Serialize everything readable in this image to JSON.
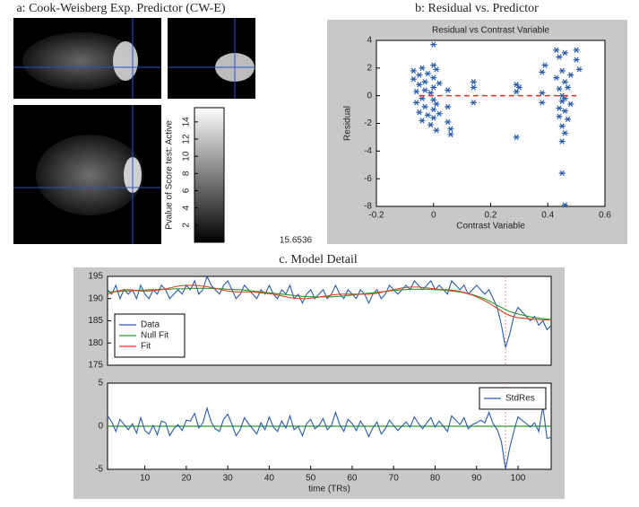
{
  "panel_a": {
    "title": "a: Cook-Weisberg Exp. Predictor (CW-E)",
    "colorbar": {
      "label": "Pvalue of Score test: Active",
      "ticks": [
        2,
        4,
        6,
        8,
        10,
        12,
        14
      ],
      "lim": [
        0,
        15.6536
      ]
    }
  },
  "chart_data": [
    {
      "type": "scatter",
      "panel_title": "b: Residual vs. Predictor",
      "title": "Residual vs Contrast Variable",
      "xlabel": "Contrast Variable",
      "ylabel": "Residual",
      "color": "#2a5caa",
      "xlim": [
        -0.2,
        0.6
      ],
      "xticks": [
        -0.2,
        0,
        0.2,
        0.4,
        0.6
      ],
      "ylim": [
        -8,
        4
      ],
      "yticks": [
        -8,
        -6,
        -4,
        -2,
        0,
        2,
        4
      ],
      "x": [
        -0.07,
        -0.07,
        -0.06,
        -0.06,
        -0.05,
        -0.05,
        -0.05,
        -0.04,
        -0.04,
        -0.04,
        -0.03,
        -0.03,
        -0.03,
        -0.02,
        -0.02,
        -0.01,
        -0.01,
        0,
        0,
        0,
        0,
        0,
        0,
        0,
        0.01,
        0.01,
        0.01,
        0.02,
        0.02,
        0.05,
        0.05,
        0.05,
        0.06,
        0.06,
        0.14,
        0.14,
        0.14,
        0.29,
        0.29,
        0.29,
        0.3,
        0.38,
        0.38,
        0.38,
        0.39,
        0.43,
        0.43,
        0.44,
        0.44,
        0.44,
        0.44,
        0.45,
        0.45,
        0.45,
        0.45,
        0.45,
        0.45,
        0.46,
        0.46,
        0.46,
        0.46,
        0.46,
        0.46,
        0.47,
        0.47,
        0.48,
        0.48,
        0.5,
        0.5,
        0.51
      ],
      "values": [
        1.8,
        1.2,
        0.3,
        -0.5,
        1.5,
        -1.2,
        0.8,
        2,
        -0.2,
        -1.8,
        1,
        0.4,
        -0.8,
        1.6,
        -1.4,
        0.2,
        -2.1,
        3.7,
        2.2,
        1.3,
        0.6,
        -0.3,
        -1,
        -1.6,
        1.9,
        -0.6,
        -2.5,
        0.9,
        -1.3,
        0.4,
        -0.8,
        -1.9,
        -2.4,
        -2.8,
        1,
        0.6,
        -0.5,
        0.8,
        0.3,
        -3,
        0.6,
        1.7,
        0.2,
        -0.5,
        2.2,
        3.3,
        1.3,
        2.8,
        0.5,
        -0.9,
        -1.5,
        1.8,
        0,
        -0.4,
        -2.2,
        -3.3,
        -5.6,
        3.1,
        1,
        -0.2,
        -1.1,
        -2.7,
        -7.9,
        0.6,
        -1.7,
        1.5,
        -0.6,
        3.3,
        2.6,
        1.9
      ],
      "fit_line": {
        "x": [
          -0.05,
          0.5
        ],
        "values": [
          0,
          0
        ],
        "color": "#e03020"
      }
    },
    {
      "type": "line",
      "title": "c. Model Detail",
      "xlim": [
        1,
        108
      ],
      "ylim": [
        175,
        195
      ],
      "yticks": [
        175,
        180,
        185,
        190,
        195
      ],
      "legend": "upper left",
      "marker_x": 97,
      "marker_color": "#e89090",
      "x": [
        1,
        2,
        3,
        4,
        5,
        6,
        7,
        8,
        9,
        10,
        11,
        12,
        13,
        14,
        15,
        16,
        17,
        18,
        19,
        20,
        21,
        22,
        23,
        24,
        25,
        26,
        27,
        28,
        29,
        30,
        31,
        32,
        33,
        34,
        35,
        36,
        37,
        38,
        39,
        40,
        41,
        42,
        43,
        44,
        45,
        46,
        47,
        48,
        49,
        50,
        51,
        52,
        53,
        54,
        55,
        56,
        57,
        58,
        59,
        60,
        61,
        62,
        63,
        64,
        65,
        66,
        67,
        68,
        69,
        70,
        71,
        72,
        73,
        74,
        75,
        76,
        77,
        78,
        79,
        80,
        81,
        82,
        83,
        84,
        85,
        86,
        87,
        88,
        89,
        90,
        91,
        92,
        93,
        94,
        95,
        96,
        97,
        98,
        99,
        100,
        101,
        102,
        103,
        104,
        105,
        106,
        107,
        108
      ],
      "series": [
        {
          "name": "Data",
          "color": "#2a5caa",
          "values": [
            192,
            191,
            193,
            190,
            192,
            191,
            192,
            190,
            193,
            191,
            190,
            192,
            191,
            193,
            192,
            190,
            191,
            192,
            191,
            193,
            192,
            194,
            191,
            192,
            195,
            193,
            192,
            191,
            193,
            194,
            192,
            190,
            191,
            193,
            192,
            191,
            190,
            192,
            191,
            193,
            191,
            190,
            192,
            191,
            193,
            190,
            191,
            189,
            191,
            192,
            190,
            191,
            192,
            190,
            191,
            193,
            191,
            190,
            192,
            191,
            190,
            192,
            191,
            189,
            191,
            192,
            190,
            191,
            193,
            192,
            191,
            192,
            193,
            192,
            194,
            193,
            192,
            193,
            194,
            192,
            193,
            192,
            191,
            194,
            193,
            192,
            193,
            191,
            192,
            193,
            192,
            191,
            192,
            190,
            188,
            184,
            179,
            182,
            186,
            188,
            187,
            186,
            185,
            186,
            184,
            185,
            183,
            184
          ]
        },
        {
          "name": "Null Fit",
          "color": "#2a9a2a",
          "values": [
            191.5,
            191.5,
            191.6,
            191.6,
            191.7,
            191.7,
            191.8,
            191.8,
            191.9,
            191.9,
            192,
            192,
            192,
            192.1,
            192.1,
            192.1,
            192.2,
            192.2,
            192.2,
            192.2,
            192.3,
            192.3,
            192.3,
            192.3,
            192.3,
            192.3,
            192.2,
            192.2,
            192.2,
            192.1,
            192.1,
            192,
            192,
            191.9,
            191.8,
            191.7,
            191.6,
            191.5,
            191.4,
            191.3,
            191.2,
            191.1,
            191,
            190.9,
            190.8,
            190.7,
            190.6,
            190.5,
            190.5,
            190.4,
            190.4,
            190.4,
            190.4,
            190.4,
            190.4,
            190.5,
            190.5,
            190.6,
            190.7,
            190.8,
            190.9,
            191,
            191.1,
            191.2,
            191.3,
            191.4,
            191.5,
            191.6,
            191.7,
            191.8,
            191.9,
            192,
            192,
            192.1,
            192.1,
            192.1,
            192.1,
            192.1,
            192.1,
            192,
            192,
            191.9,
            191.8,
            191.7,
            191.6,
            191.5,
            191.3,
            191.1,
            190.9,
            190.6,
            190.3,
            189.9,
            189.5,
            189,
            188.5,
            188,
            187.5,
            187.1,
            186.8,
            186.5,
            186.3,
            186.1,
            185.9,
            185.7,
            185.6,
            185.5,
            185.4,
            185.3
          ]
        },
        {
          "name": "Fit",
          "color": "#e04020",
          "values": [
            191,
            191.3,
            191.6,
            191.8,
            192,
            192,
            191.9,
            191.8,
            191.7,
            191.7,
            191.7,
            191.8,
            191.9,
            192,
            192.2,
            192.4,
            192.6,
            192.8,
            192.9,
            193,
            193,
            193,
            192.9,
            192.8,
            192.7,
            192.5,
            192.3,
            192.1,
            191.9,
            191.7,
            191.6,
            191.5,
            191.5,
            191.5,
            191.5,
            191.5,
            191.4,
            191.3,
            191.2,
            191.1,
            191,
            190.8,
            190.6,
            190.4,
            190.2,
            190.1,
            190,
            190,
            190,
            190.1,
            190.2,
            190.3,
            190.5,
            190.6,
            190.8,
            190.9,
            191,
            191,
            191,
            191,
            191,
            191,
            191,
            191,
            191.1,
            191.2,
            191.4,
            191.6,
            191.8,
            192,
            192.2,
            192.4,
            192.5,
            192.6,
            192.6,
            192.6,
            192.5,
            192.4,
            192.3,
            192.2,
            192.1,
            192,
            192,
            191.9,
            191.8,
            191.6,
            191.4,
            191.1,
            190.8,
            190.4,
            190,
            189.5,
            189,
            188.4,
            187.8,
            187.2,
            186.6,
            186.2,
            185.9,
            185.7,
            185.6,
            185.5,
            185.4,
            185.3,
            185.3,
            185.2,
            185.2,
            185.2
          ]
        }
      ]
    },
    {
      "type": "line",
      "xlabel": "time (TRs)",
      "xlim": [
        1,
        108
      ],
      "xticks": [
        10,
        20,
        30,
        40,
        50,
        60,
        70,
        80,
        90,
        100
      ],
      "ylim": [
        -5,
        5
      ],
      "yticks": [
        -5,
        0,
        5
      ],
      "legend": "upper right",
      "marker_x": 97,
      "marker_color": "#e89090",
      "reference_y": 0,
      "reference_color": "#2a9a2a",
      "x": [
        1,
        2,
        3,
        4,
        5,
        6,
        7,
        8,
        9,
        10,
        11,
        12,
        13,
        14,
        15,
        16,
        17,
        18,
        19,
        20,
        21,
        22,
        23,
        24,
        25,
        26,
        27,
        28,
        29,
        30,
        31,
        32,
        33,
        34,
        35,
        36,
        37,
        38,
        39,
        40,
        41,
        42,
        43,
        44,
        45,
        46,
        47,
        48,
        49,
        50,
        51,
        52,
        53,
        54,
        55,
        56,
        57,
        58,
        59,
        60,
        61,
        62,
        63,
        64,
        65,
        66,
        67,
        68,
        69,
        70,
        71,
        72,
        73,
        74,
        75,
        76,
        77,
        78,
        79,
        80,
        81,
        82,
        83,
        84,
        85,
        86,
        87,
        88,
        89,
        90,
        91,
        92,
        93,
        94,
        95,
        96,
        97,
        98,
        99,
        100,
        101,
        102,
        103,
        104,
        105,
        106,
        107,
        108
      ],
      "series": [
        {
          "name": "StdRes",
          "color": "#2a5caa",
          "values": [
            1.2,
            0.5,
            -0.6,
            0.8,
            0.2,
            -0.4,
            0.3,
            -0.8,
            1,
            -0.5,
            -0.9,
            0.1,
            -1,
            0.6,
            0.4,
            -1.1,
            -0.3,
            0.2,
            -0.5,
            0.7,
            0.6,
            1.5,
            -0.2,
            0.4,
            2.1,
            0.5,
            -0.3,
            -0.6,
            0.8,
            1.4,
            0.2,
            -1.1,
            -0.4,
            1,
            0.3,
            -0.3,
            -0.9,
            0.4,
            -0.4,
            1.1,
            -0.1,
            -0.6,
            0.6,
            -0.2,
            1.2,
            -0.4,
            0,
            -1.1,
            0.3,
            0.8,
            -0.3,
            0.1,
            0.9,
            -0.4,
            0.1,
            1.6,
            0.2,
            -0.6,
            0.8,
            0.3,
            -0.5,
            0.6,
            -0.1,
            -1.2,
            -0.2,
            0.5,
            -0.9,
            -0.3,
            0.7,
            0.1,
            -0.5,
            0,
            0.5,
            -0.1,
            1.1,
            0.3,
            -0.3,
            0.4,
            1,
            -0.1,
            0.6,
            0,
            -0.6,
            1.2,
            0.7,
            0.2,
            1,
            -0.3,
            0.2,
            0.4,
            0.7,
            0.4,
            1.6,
            0.3,
            -0.4,
            -1.8,
            -5,
            -2.5,
            -0.6,
            1.1,
            0.7,
            0.3,
            -0.1,
            0.4,
            -0.6,
            2.3,
            -1.4,
            -1.3
          ]
        }
      ]
    }
  ]
}
